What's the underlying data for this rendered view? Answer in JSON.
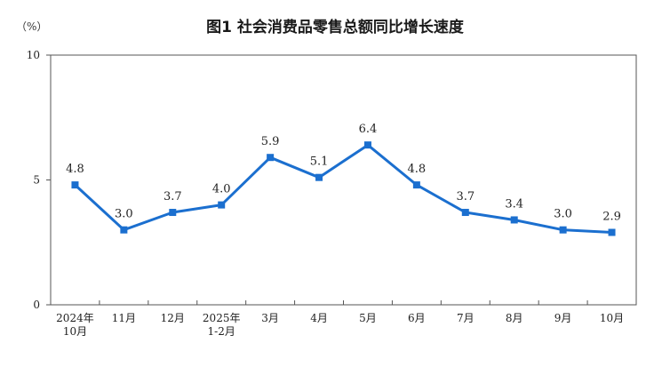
{
  "chart_data": {
    "type": "line",
    "title": "图1  社会消费品零售总额同比增长速度",
    "unit": "（%）",
    "categories": [
      [
        "2024年",
        "10月"
      ],
      [
        "11月"
      ],
      [
        "12月"
      ],
      [
        "2025年",
        "1-2月"
      ],
      [
        "3月"
      ],
      [
        "4月"
      ],
      [
        "5月"
      ],
      [
        "6月"
      ],
      [
        "7月"
      ],
      [
        "8月"
      ],
      [
        "9月"
      ],
      [
        "10月"
      ]
    ],
    "series": [
      {
        "values": [
          4.8,
          3.0,
          3.7,
          4.0,
          5.9,
          5.1,
          6.4,
          4.8,
          3.7,
          3.4,
          3.0,
          2.9
        ]
      }
    ],
    "data_labels": [
      "4.8",
      "3.0",
      "3.7",
      "4.0",
      "5.9",
      "5.1",
      "6.4",
      "4.8",
      "3.7",
      "3.4",
      "3.0",
      "2.9"
    ],
    "ylim": [
      0,
      10
    ],
    "yticks": [
      0,
      5,
      10
    ],
    "grid": false,
    "legend": "none",
    "colors": {
      "line": "#1b6fcf",
      "axis": "#555555"
    }
  }
}
